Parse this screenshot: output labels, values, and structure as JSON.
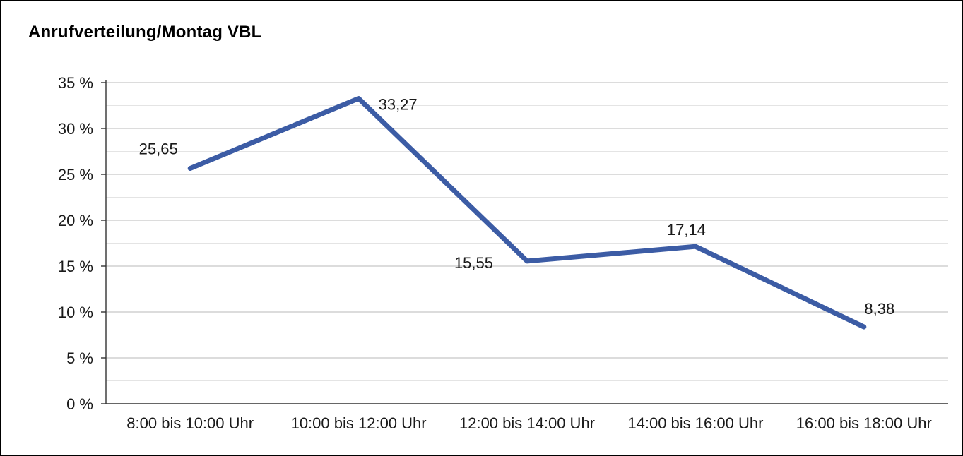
{
  "title": "Anrufverteilung/Montag VBL",
  "chart_data": {
    "type": "line",
    "title": "Anrufverteilung/Montag VBL",
    "categories": [
      "8:00 bis 10:00 Uhr",
      "10:00 bis 12:00 Uhr",
      "12:00 bis 14:00 Uhr",
      "14:00 bis 16:00 Uhr",
      "16:00 bis 18:00 Uhr"
    ],
    "values": [
      25.65,
      33.27,
      15.55,
      17.14,
      8.38
    ],
    "value_labels": [
      "25,65",
      "33,27",
      "15,55",
      "17,14",
      "8,38"
    ],
    "xlabel": "",
    "ylabel": "",
    "ylim": [
      0,
      35
    ],
    "ytick_step": 5,
    "ytick_labels": [
      "0 %",
      "5 %",
      "10 %",
      "15 %",
      "20 %",
      "25 %",
      "30 %",
      "35 %"
    ],
    "grid": "horizontal",
    "legend": "none",
    "colors": {
      "line": "#3C5CA5",
      "grid_major": "#c6c6c6",
      "grid_minor": "#e4e4e4",
      "axis": "#333333",
      "text": "#1a1a1a",
      "background": "#ffffff",
      "border": "#000000"
    }
  }
}
